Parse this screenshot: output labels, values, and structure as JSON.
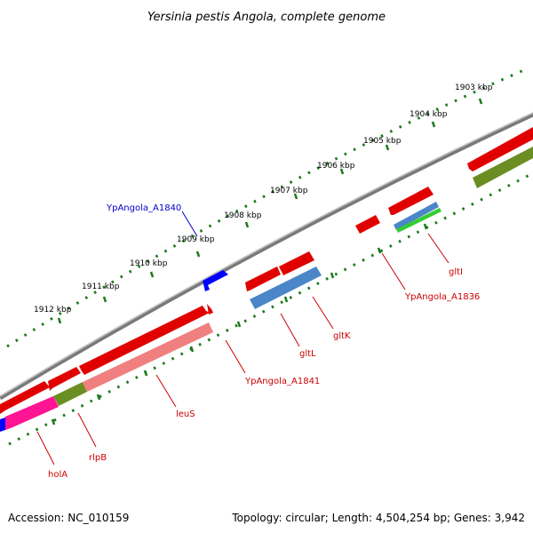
{
  "title": "Yersinia pestis Angola, complete genome",
  "footer": {
    "accession": "Accession: NC_010159",
    "summary": "Topology: circular; Length: 4,504,254 bp; Genes: 3,942"
  },
  "colors": {
    "backbone": "#8a8a8a",
    "ticks": "#1a7a1a",
    "gene_label": "#cc0000",
    "highlight_label": "#0000cc",
    "cds": "#ff0000",
    "cds_light": "#f08080",
    "cds_magenta": "#ff1493",
    "rna_blue": "#4a86c8",
    "rna_olive": "#6b8e23",
    "rna_green": "#32cd32",
    "selected": "#0000ff"
  },
  "scale_labels": [
    "1903 kbp",
    "1904 kbp",
    "1905 kbp",
    "1906 kbp",
    "1907 kbp",
    "1908 kbp",
    "1909 kbp",
    "1910 kbp",
    "1911 kbp",
    "1912 kbp"
  ],
  "gene_labels": {
    "YpAngola_A1840": "YpAngola_A1840",
    "gltI": "gltI",
    "YpAngola_A1836": "YpAngola_A1836",
    "gltK": "gltK",
    "gltL": "gltL",
    "YpAngola_A1841": "YpAngola_A1841",
    "leuS": "leuS",
    "rlpB": "rlpB",
    "holA": "holA"
  }
}
